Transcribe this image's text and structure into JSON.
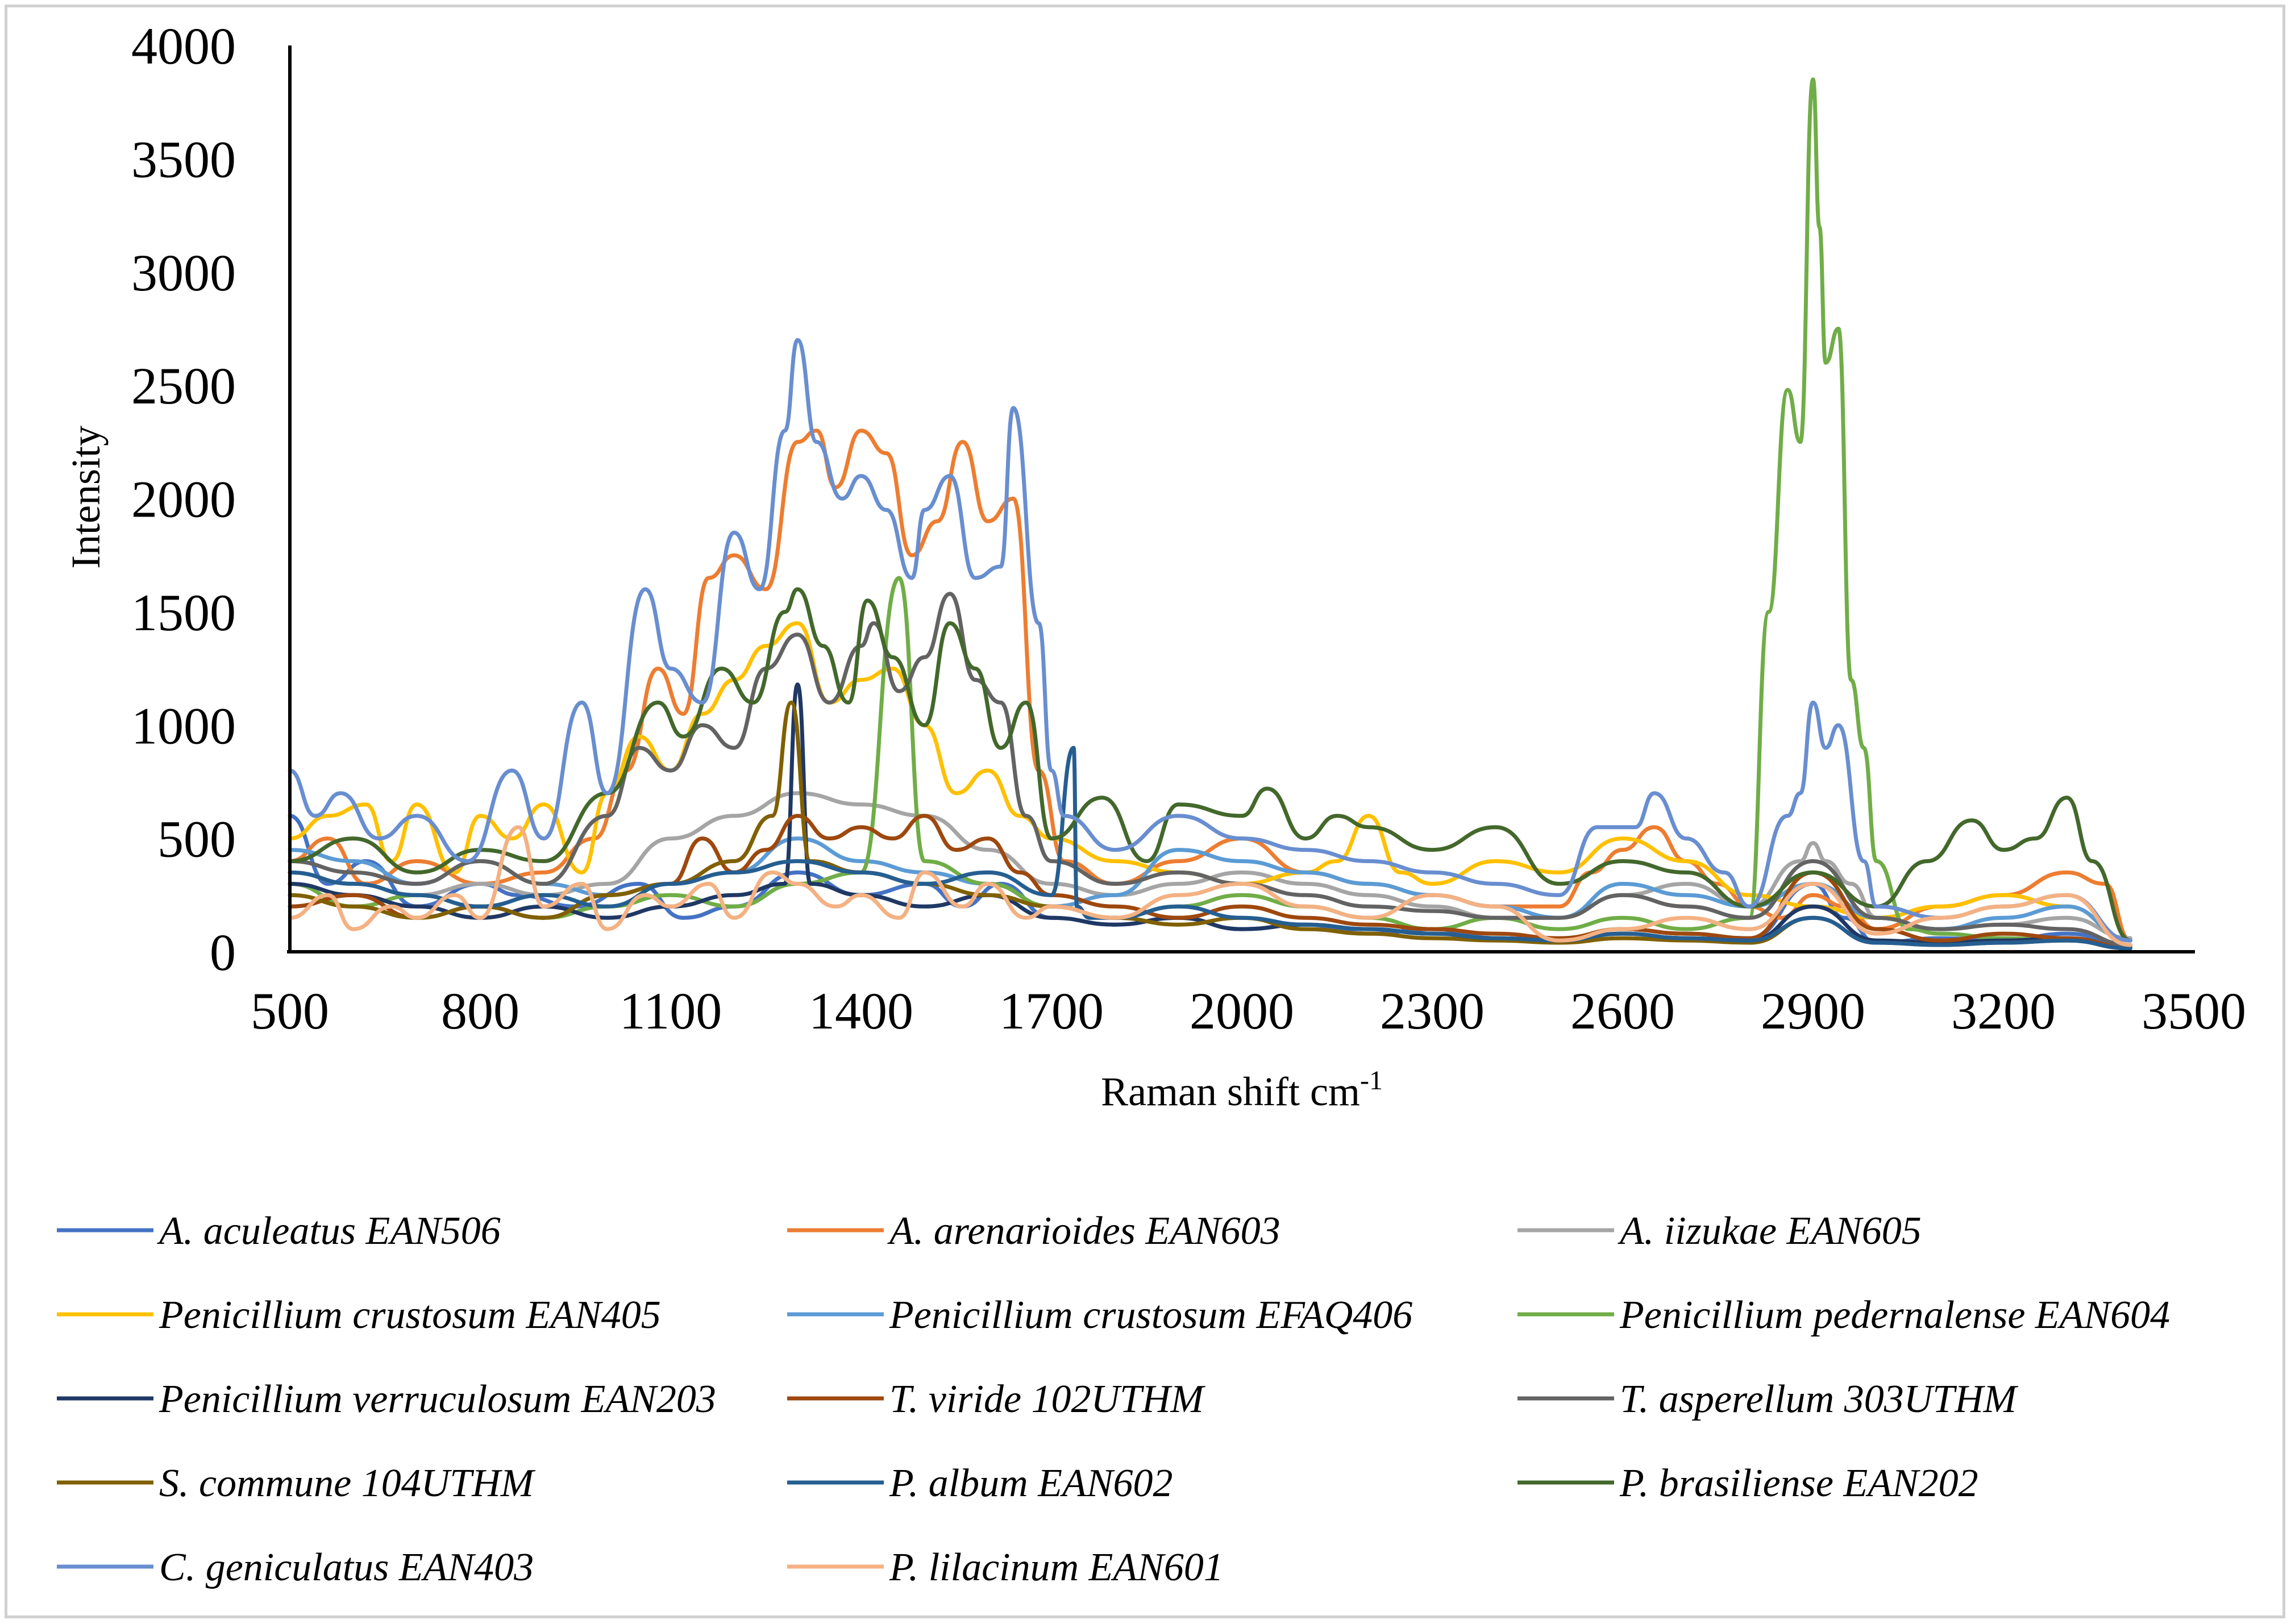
{
  "chart_data": {
    "type": "line",
    "title": "",
    "xlabel": "Raman shift cm",
    "xlabel_superscript": "-1",
    "ylabel": "Intensity",
    "xlim": [
      500,
      3500
    ],
    "ylim": [
      0,
      4000
    ],
    "xticks": [
      500,
      800,
      1100,
      1400,
      1700,
      2000,
      2300,
      2600,
      2900,
      3200,
      3500
    ],
    "yticks": [
      0,
      500,
      1000,
      1500,
      2000,
      2500,
      3000,
      3500,
      4000
    ],
    "grid": false,
    "legend_position": "bottom",
    "series": [
      {
        "name": "A. aculeatus EAN506",
        "color": "#4472C4",
        "x": [
          500,
          560,
          620,
          700,
          800,
          860,
          950,
          1050,
          1120,
          1200,
          1300,
          1400,
          1500,
          1560,
          1620,
          1700,
          1800,
          1900,
          2000,
          2100,
          2200,
          2300,
          2400,
          2500,
          2600,
          2700,
          2800,
          2900,
          2950,
          3000,
          3100,
          3200,
          3300,
          3400
        ],
        "y": [
          600,
          300,
          400,
          200,
          300,
          250,
          200,
          300,
          150,
          200,
          350,
          250,
          300,
          200,
          300,
          150,
          120,
          150,
          100,
          120,
          80,
          100,
          60,
          50,
          100,
          80,
          60,
          300,
          150,
          40,
          60,
          50,
          80,
          30
        ]
      },
      {
        "name": "A. arenarioides EAN603",
        "color": "#ED7D31",
        "x": [
          500,
          560,
          620,
          700,
          800,
          900,
          980,
          1030,
          1080,
          1120,
          1160,
          1200,
          1250,
          1300,
          1330,
          1360,
          1400,
          1440,
          1480,
          1520,
          1560,
          1600,
          1640,
          1680,
          1720,
          1800,
          1900,
          2000,
          2100,
          2200,
          2300,
          2400,
          2500,
          2550,
          2600,
          2650,
          2700,
          2750,
          2800,
          2850,
          2900,
          2950,
          3000,
          3100,
          3200,
          3300,
          3360,
          3400
        ],
        "y": [
          400,
          500,
          300,
          400,
          300,
          350,
          500,
          800,
          1250,
          1050,
          1650,
          1750,
          1600,
          2250,
          2300,
          2050,
          2300,
          2200,
          1750,
          1900,
          2250,
          1900,
          2000,
          800,
          400,
          300,
          400,
          500,
          350,
          300,
          250,
          200,
          200,
          350,
          450,
          550,
          400,
          300,
          200,
          150,
          250,
          200,
          100,
          200,
          250,
          350,
          300,
          50
        ]
      },
      {
        "name": "A. iizukae EAN605",
        "color": "#A5A5A5",
        "x": [
          500,
          600,
          700,
          800,
          900,
          1000,
          1100,
          1200,
          1300,
          1400,
          1500,
          1600,
          1700,
          1800,
          1900,
          2000,
          2100,
          2200,
          2300,
          2400,
          2500,
          2600,
          2700,
          2800,
          2880,
          2900,
          2920,
          2960,
          3000,
          3100,
          3200,
          3300,
          3400
        ],
        "y": [
          350,
          300,
          250,
          300,
          250,
          300,
          500,
          600,
          700,
          650,
          600,
          450,
          300,
          250,
          300,
          350,
          300,
          250,
          200,
          150,
          150,
          250,
          300,
          200,
          400,
          480,
          400,
          300,
          150,
          100,
          120,
          150,
          60
        ]
      },
      {
        "name": "Penicillium crustosum EAN405",
        "color": "#FFC000",
        "x": [
          500,
          560,
          620,
          660,
          700,
          760,
          800,
          850,
          900,
          960,
          1000,
          1050,
          1100,
          1150,
          1200,
          1250,
          1300,
          1350,
          1400,
          1450,
          1500,
          1550,
          1600,
          1650,
          1700,
          1800,
          1900,
          2000,
          2100,
          2150,
          2200,
          2250,
          2300,
          2400,
          2500,
          2600,
          2700,
          2800,
          2900,
          3000,
          3100,
          3200,
          3300,
          3400
        ],
        "y": [
          500,
          600,
          650,
          400,
          650,
          350,
          600,
          500,
          650,
          350,
          700,
          950,
          800,
          1050,
          1200,
          1350,
          1450,
          1100,
          1200,
          1250,
          1000,
          700,
          800,
          600,
          500,
          400,
          350,
          300,
          350,
          400,
          600,
          350,
          300,
          400,
          350,
          500,
          400,
          250,
          200,
          150,
          200,
          250,
          200,
          50
        ]
      },
      {
        "name": "Penicillium crustosum EFAQ406",
        "color": "#5B9BD5",
        "x": [
          500,
          600,
          700,
          800,
          900,
          1000,
          1100,
          1200,
          1300,
          1400,
          1500,
          1600,
          1700,
          1800,
          1900,
          2000,
          2100,
          2200,
          2300,
          2400,
          2500,
          2600,
          2700,
          2800,
          2900,
          3000,
          3100,
          3200,
          3300,
          3400
        ],
        "y": [
          450,
          400,
          300,
          400,
          300,
          250,
          300,
          350,
          500,
          400,
          350,
          300,
          200,
          250,
          450,
          400,
          350,
          300,
          250,
          200,
          150,
          300,
          250,
          200,
          300,
          150,
          100,
          150,
          200,
          50
        ]
      },
      {
        "name": "Penicillium pedernalense EAN604",
        "color": "#70AD47",
        "x": [
          500,
          600,
          700,
          800,
          900,
          1000,
          1100,
          1200,
          1300,
          1400,
          1460,
          1500,
          1600,
          1700,
          1800,
          1900,
          2000,
          2100,
          2200,
          2300,
          2400,
          2500,
          2600,
          2700,
          2800,
          2830,
          2860,
          2880,
          2900,
          2910,
          2920,
          2940,
          2960,
          2980,
          3000,
          3050,
          3100,
          3200,
          3300,
          3400
        ],
        "y": [
          300,
          200,
          250,
          200,
          150,
          200,
          250,
          200,
          300,
          350,
          1650,
          400,
          300,
          200,
          150,
          200,
          250,
          200,
          150,
          100,
          150,
          100,
          150,
          100,
          150,
          1500,
          2480,
          2250,
          3850,
          3200,
          2600,
          2750,
          1200,
          900,
          400,
          100,
          80,
          60,
          50,
          20
        ]
      },
      {
        "name": "Penicillium verruculosum EAN203",
        "color": "#1F3864",
        "x": [
          500,
          600,
          700,
          800,
          900,
          1000,
          1100,
          1200,
          1280,
          1300,
          1320,
          1400,
          1500,
          1600,
          1700,
          1800,
          1900,
          2000,
          2100,
          2200,
          2300,
          2400,
          2500,
          2600,
          2700,
          2800,
          2900,
          3000,
          3100,
          3200,
          3300,
          3400
        ],
        "y": [
          300,
          250,
          200,
          150,
          200,
          150,
          200,
          250,
          300,
          1180,
          300,
          250,
          200,
          250,
          150,
          120,
          150,
          100,
          120,
          100,
          80,
          60,
          50,
          80,
          60,
          50,
          200,
          50,
          40,
          50,
          60,
          20
        ]
      },
      {
        "name": "T. viride 102UTHM",
        "color": "#9E480E",
        "x": [
          500,
          600,
          700,
          800,
          900,
          1000,
          1100,
          1150,
          1200,
          1250,
          1300,
          1350,
          1400,
          1450,
          1500,
          1550,
          1600,
          1650,
          1700,
          1800,
          1900,
          2000,
          2100,
          2200,
          2300,
          2400,
          2500,
          2600,
          2700,
          2800,
          2900,
          3000,
          3100,
          3200,
          3300,
          3400
        ],
        "y": [
          200,
          250,
          150,
          200,
          150,
          250,
          300,
          500,
          350,
          450,
          600,
          500,
          550,
          500,
          600,
          450,
          500,
          350,
          250,
          200,
          150,
          200,
          150,
          120,
          100,
          80,
          60,
          100,
          80,
          60,
          350,
          100,
          50,
          80,
          60,
          20
        ]
      },
      {
        "name": "T. asperellum 303UTHM",
        "color": "#636363",
        "x": [
          500,
          600,
          700,
          800,
          900,
          1000,
          1050,
          1100,
          1150,
          1200,
          1250,
          1300,
          1350,
          1400,
          1420,
          1460,
          1500,
          1540,
          1580,
          1620,
          1660,
          1700,
          1800,
          1900,
          2000,
          2100,
          2200,
          2300,
          2400,
          2500,
          2600,
          2700,
          2800,
          2900,
          3000,
          3100,
          3200,
          3300,
          3400
        ],
        "y": [
          400,
          350,
          300,
          400,
          300,
          600,
          900,
          800,
          1000,
          900,
          1250,
          1400,
          1100,
          1350,
          1450,
          1150,
          1300,
          1580,
          1200,
          1100,
          600,
          400,
          300,
          350,
          300,
          250,
          200,
          180,
          150,
          150,
          250,
          200,
          150,
          400,
          150,
          100,
          120,
          100,
          30
        ]
      },
      {
        "name": "S. commune 104UTHM",
        "color": "#806000",
        "x": [
          500,
          600,
          700,
          800,
          900,
          1000,
          1100,
          1200,
          1260,
          1290,
          1320,
          1400,
          1500,
          1600,
          1700,
          1800,
          1900,
          2000,
          2100,
          2200,
          2300,
          2400,
          2500,
          2600,
          2700,
          2800,
          2900,
          3000,
          3100,
          3200,
          3300,
          3400
        ],
        "y": [
          250,
          200,
          150,
          200,
          150,
          250,
          300,
          400,
          600,
          1100,
          400,
          350,
          300,
          250,
          200,
          150,
          120,
          150,
          100,
          80,
          60,
          50,
          40,
          60,
          50,
          40,
          150,
          40,
          30,
          40,
          50,
          15
        ]
      },
      {
        "name": "P. album EAN602",
        "color": "#255E91",
        "x": [
          500,
          600,
          700,
          800,
          900,
          1000,
          1100,
          1200,
          1300,
          1400,
          1500,
          1600,
          1700,
          1735,
          1740,
          1760,
          1800,
          1900,
          2000,
          2100,
          2200,
          2300,
          2400,
          2500,
          2600,
          2700,
          2800,
          2900,
          3000,
          3100,
          3200,
          3300,
          3400
        ],
        "y": [
          350,
          300,
          250,
          200,
          250,
          200,
          300,
          350,
          400,
          350,
          300,
          350,
          250,
          900,
          200,
          150,
          150,
          200,
          150,
          120,
          100,
          80,
          60,
          50,
          80,
          60,
          50,
          150,
          40,
          30,
          40,
          50,
          15
        ]
      },
      {
        "name": "P. brasiliense EAN202",
        "color": "#43682B",
        "x": [
          500,
          600,
          700,
          800,
          900,
          1000,
          1080,
          1120,
          1180,
          1230,
          1280,
          1300,
          1340,
          1380,
          1410,
          1450,
          1500,
          1540,
          1580,
          1620,
          1660,
          1700,
          1780,
          1850,
          1900,
          2000,
          2040,
          2100,
          2150,
          2200,
          2300,
          2400,
          2500,
          2600,
          2700,
          2800,
          2900,
          3000,
          3080,
          3150,
          3200,
          3250,
          3300,
          3340,
          3400
        ],
        "y": [
          400,
          500,
          350,
          450,
          400,
          700,
          1100,
          950,
          1250,
          1100,
          1500,
          1600,
          1350,
          1100,
          1550,
          1300,
          1000,
          1450,
          1250,
          900,
          1100,
          500,
          680,
          400,
          650,
          600,
          720,
          500,
          600,
          550,
          450,
          550,
          300,
          400,
          350,
          200,
          350,
          200,
          400,
          580,
          450,
          500,
          680,
          400,
          50
        ]
      },
      {
        "name": "C. geniculatus EAN403",
        "color": "#698ED0",
        "x": [
          500,
          540,
          580,
          640,
          700,
          780,
          850,
          900,
          960,
          1000,
          1060,
          1100,
          1150,
          1200,
          1240,
          1280,
          1300,
          1330,
          1370,
          1400,
          1440,
          1480,
          1500,
          1540,
          1580,
          1620,
          1640,
          1680,
          1700,
          1720,
          1800,
          1900,
          2000,
          2100,
          2200,
          2300,
          2400,
          2500,
          2560,
          2620,
          2650,
          2700,
          2760,
          2800,
          2860,
          2880,
          2900,
          2920,
          2940,
          2980,
          3000,
          3100,
          3200,
          3300,
          3400
        ],
        "y": [
          800,
          600,
          700,
          500,
          600,
          400,
          800,
          500,
          1100,
          700,
          1600,
          1250,
          1100,
          1850,
          1600,
          2300,
          2700,
          2250,
          2000,
          2100,
          1950,
          1650,
          1950,
          2100,
          1650,
          1700,
          2400,
          1450,
          800,
          600,
          450,
          600,
          500,
          450,
          400,
          350,
          300,
          250,
          550,
          550,
          700,
          500,
          350,
          200,
          600,
          700,
          1100,
          900,
          1000,
          400,
          200,
          150,
          200,
          250,
          50
        ]
      },
      {
        "name": "P. lilacinum EAN601",
        "color": "#F4B183",
        "x": [
          500,
          560,
          600,
          660,
          700,
          760,
          800,
          860,
          900,
          960,
          1000,
          1060,
          1100,
          1160,
          1200,
          1260,
          1300,
          1360,
          1400,
          1460,
          1500,
          1560,
          1600,
          1660,
          1700,
          1800,
          1900,
          2000,
          2100,
          2200,
          2300,
          2400,
          2500,
          2600,
          2700,
          2800,
          2900,
          3000,
          3100,
          3200,
          3300,
          3400
        ],
        "y": [
          150,
          250,
          100,
          200,
          150,
          250,
          150,
          550,
          200,
          300,
          100,
          250,
          200,
          300,
          150,
          350,
          300,
          200,
          250,
          150,
          350,
          200,
          300,
          150,
          200,
          150,
          250,
          300,
          200,
          150,
          250,
          200,
          50,
          100,
          150,
          100,
          300,
          80,
          150,
          200,
          250,
          30
        ]
      }
    ]
  }
}
